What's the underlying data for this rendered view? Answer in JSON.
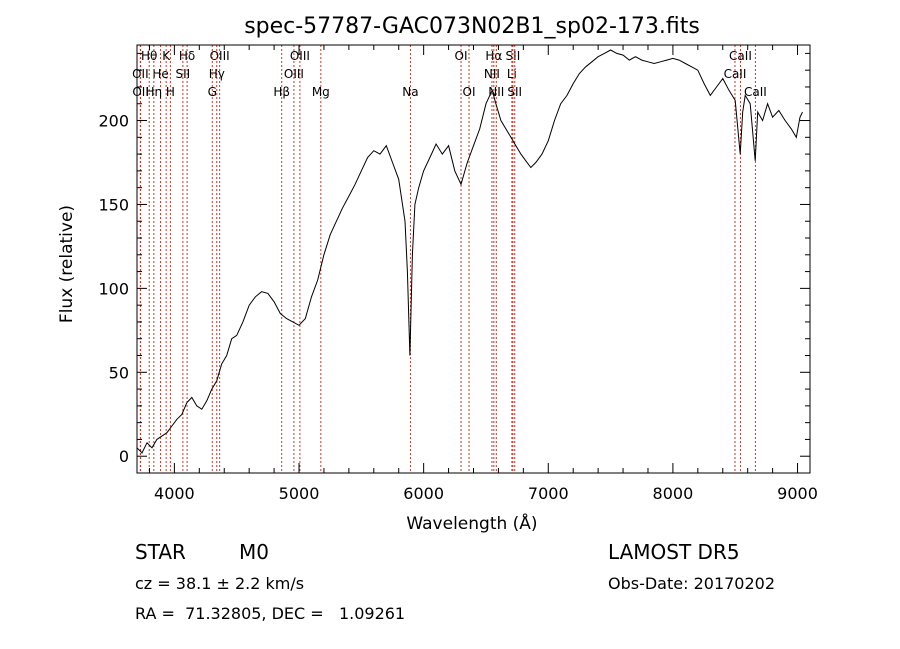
{
  "chart_data": {
    "type": "line",
    "title": "spec-57787-GAC073N02B1_sp02-173.fits",
    "xlabel": "Wavelength (Å)",
    "ylabel": "Flux (relative)",
    "xlim": [
      3700,
      9100
    ],
    "ylim": [
      -10,
      245
    ],
    "xticks": [
      4000,
      5000,
      6000,
      7000,
      8000,
      9000
    ],
    "yticks": [
      0,
      50,
      100,
      150,
      200
    ],
    "grid": false,
    "series": [
      {
        "x": [
          3700,
          3740,
          3780,
          3820,
          3860,
          3900,
          3940,
          3980,
          4020,
          4060,
          4100,
          4140,
          4180,
          4220,
          4260,
          4300,
          4340,
          4380,
          4420,
          4460,
          4500,
          4550,
          4600,
          4650,
          4700,
          4750,
          4800,
          4850,
          4900,
          4950,
          5000,
          5050,
          5100,
          5150,
          5200,
          5250,
          5300,
          5350,
          5400,
          5450,
          5500,
          5550,
          5600,
          5650,
          5700,
          5750,
          5800,
          5850,
          5870,
          5890,
          5910,
          5930,
          5960,
          6000,
          6050,
          6100,
          6150,
          6200,
          6250,
          6300,
          6350,
          6400,
          6450,
          6500,
          6550,
          6580,
          6620,
          6660,
          6700,
          6740,
          6780,
          6820,
          6860,
          6900,
          6950,
          7000,
          7050,
          7100,
          7150,
          7200,
          7250,
          7300,
          7350,
          7400,
          7450,
          7500,
          7550,
          7600,
          7650,
          7700,
          7750,
          7800,
          7850,
          7900,
          7950,
          8000,
          8050,
          8100,
          8150,
          8200,
          8250,
          8300,
          8350,
          8400,
          8450,
          8500,
          8540,
          8560,
          8580,
          8620,
          8660,
          8680,
          8720,
          8760,
          8800,
          8850,
          8900,
          8950,
          8990,
          9020,
          9040
        ],
        "y": [
          5,
          2,
          8,
          5,
          10,
          12,
          14,
          18,
          22,
          25,
          32,
          35,
          30,
          28,
          33,
          40,
          45,
          55,
          60,
          70,
          72,
          80,
          90,
          95,
          98,
          97,
          92,
          85,
          82,
          80,
          78,
          82,
          95,
          105,
          120,
          132,
          140,
          148,
          155,
          162,
          170,
          178,
          182,
          180,
          185,
          175,
          165,
          140,
          110,
          60,
          120,
          150,
          160,
          170,
          178,
          186,
          180,
          185,
          170,
          162,
          175,
          185,
          195,
          210,
          218,
          210,
          200,
          195,
          190,
          185,
          180,
          176,
          172,
          175,
          180,
          188,
          200,
          210,
          215,
          222,
          228,
          232,
          235,
          238,
          240,
          242,
          240,
          239,
          236,
          238,
          236,
          235,
          234,
          235,
          236,
          237,
          236,
          234,
          232,
          230,
          222,
          215,
          220,
          225,
          218,
          212,
          180,
          205,
          215,
          210,
          176,
          205,
          200,
          210,
          202,
          206,
          200,
          195,
          190,
          202,
          205
        ]
      }
    ],
    "lines": [
      {
        "label": "Hθ",
        "x": 3798,
        "row": 0
      },
      {
        "label": "K",
        "x": 3934,
        "row": 0
      },
      {
        "label": "Hδ",
        "x": 4102,
        "row": 0
      },
      {
        "label": "OIII",
        "x": 4363,
        "row": 0
      },
      {
        "label": "OIII",
        "x": 5007,
        "row": 0
      },
      {
        "label": "OI",
        "x": 6300,
        "row": 0
      },
      {
        "label": "Hα",
        "x": 6563,
        "row": 0
      },
      {
        "label": "SII",
        "x": 6716,
        "row": 0
      },
      {
        "label": "CaII",
        "x": 8542,
        "row": 0
      },
      {
        "label": "OII",
        "x": 3727,
        "row": 1
      },
      {
        "label": "He",
        "x": 3889,
        "row": 1
      },
      {
        "label": "SII",
        "x": 4068,
        "row": 1
      },
      {
        "label": "Hγ",
        "x": 4340,
        "row": 1
      },
      {
        "label": "OIII",
        "x": 4959,
        "row": 1
      },
      {
        "label": "NII",
        "x": 6548,
        "row": 1
      },
      {
        "label": "Li",
        "x": 6708,
        "row": 1
      },
      {
        "label": "CaII",
        "x": 8498,
        "row": 1
      },
      {
        "label": "OII",
        "x": 3729,
        "row": 2
      },
      {
        "label": "Hη",
        "x": 3835,
        "row": 2
      },
      {
        "label": "H",
        "x": 3968,
        "row": 2
      },
      {
        "label": "G",
        "x": 4304,
        "row": 2
      },
      {
        "label": "Hβ",
        "x": 4861,
        "row": 2
      },
      {
        "label": "Mg",
        "x": 5175,
        "row": 2
      },
      {
        "label": "Na",
        "x": 5894,
        "row": 2
      },
      {
        "label": "OI",
        "x": 6364,
        "row": 2
      },
      {
        "label": "NII",
        "x": 6583,
        "row": 2
      },
      {
        "label": "SII",
        "x": 6731,
        "row": 2
      },
      {
        "label": "CaII",
        "x": 8662,
        "row": 2
      }
    ]
  },
  "footer": {
    "class_label": "STAR",
    "subclass": "M0",
    "survey": "LAMOST DR5",
    "cz": "cz = 38.1 ± 2.2 km/s",
    "obs_date": "Obs-Date: 20170202",
    "coords": "RA =  71.32805, DEC =   1.09261"
  },
  "colors": {
    "line_marker": "#c0392b",
    "spectrum": "#000000",
    "background": "#ffffff"
  }
}
